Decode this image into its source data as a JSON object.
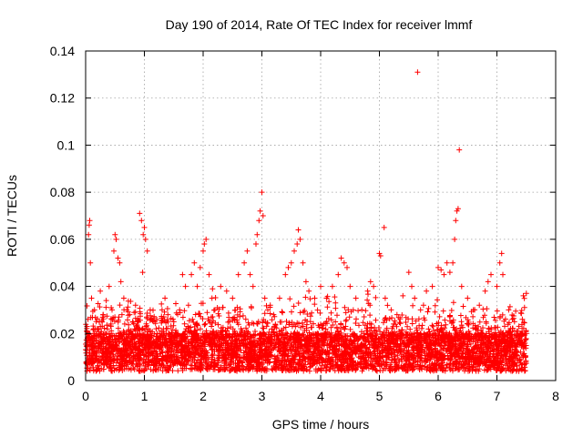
{
  "chart_data": {
    "type": "scatter",
    "title": "Day 190 of 2014, Rate Of TEC Index for receiver lmmf",
    "xlabel": "GPS time / hours",
    "ylabel": "ROTI / TECUs",
    "xlim": [
      0,
      8
    ],
    "ylim": [
      0,
      0.14
    ],
    "xticks": [
      0,
      1,
      2,
      3,
      4,
      5,
      6,
      7,
      8
    ],
    "yticks": [
      0,
      0.02,
      0.04,
      0.06,
      0.08,
      0.1,
      0.12,
      0.14
    ],
    "xtick_labels": [
      "0",
      "1",
      "2",
      "3",
      "4",
      "5",
      "6",
      "7",
      "8"
    ],
    "ytick_labels": [
      "0",
      "0.02",
      "0.04",
      "0.06",
      "0.08",
      "0.1",
      "0.12",
      "0.14"
    ],
    "grid": true,
    "marker": "+",
    "color": "#ff0000",
    "series": [
      {
        "name": "ROTI",
        "points": [
          [
            0.02,
            0.008
          ],
          [
            0.03,
            0.018
          ],
          [
            0.04,
            0.026
          ],
          [
            0.05,
            0.062
          ],
          [
            0.06,
            0.066
          ],
          [
            0.07,
            0.068
          ],
          [
            0.08,
            0.05
          ],
          [
            0.1,
            0.035
          ],
          [
            0.12,
            0.012
          ],
          [
            0.15,
            0.03
          ],
          [
            0.2,
            0.022
          ],
          [
            0.25,
            0.038
          ],
          [
            0.3,
            0.028
          ],
          [
            0.35,
            0.034
          ],
          [
            0.4,
            0.04
          ],
          [
            0.45,
            0.03
          ],
          [
            0.48,
            0.055
          ],
          [
            0.5,
            0.062
          ],
          [
            0.52,
            0.06
          ],
          [
            0.55,
            0.052
          ],
          [
            0.58,
            0.05
          ],
          [
            0.6,
            0.042
          ],
          [
            0.65,
            0.035
          ],
          [
            0.7,
            0.03
          ],
          [
            0.75,
            0.028
          ],
          [
            0.8,
            0.025
          ],
          [
            0.85,
            0.032
          ],
          [
            0.9,
            0.022
          ],
          [
            0.92,
            0.071
          ],
          [
            0.95,
            0.068
          ],
          [
            0.98,
            0.062
          ],
          [
            1.0,
            0.065
          ],
          [
            1.02,
            0.06
          ],
          [
            1.05,
            0.055
          ],
          [
            0.97,
            0.046
          ],
          [
            1.1,
            0.03
          ],
          [
            1.2,
            0.022
          ],
          [
            1.3,
            0.03
          ],
          [
            1.35,
            0.035
          ],
          [
            1.4,
            0.028
          ],
          [
            1.5,
            0.025
          ],
          [
            1.55,
            0.02
          ],
          [
            1.6,
            0.03
          ],
          [
            1.65,
            0.045
          ],
          [
            1.7,
            0.04
          ],
          [
            1.75,
            0.032
          ],
          [
            1.8,
            0.045
          ],
          [
            1.85,
            0.05
          ],
          [
            1.9,
            0.04
          ],
          [
            1.95,
            0.048
          ],
          [
            2.0,
            0.055
          ],
          [
            2.02,
            0.058
          ],
          [
            2.05,
            0.06
          ],
          [
            2.1,
            0.045
          ],
          [
            2.15,
            0.035
          ],
          [
            2.2,
            0.03
          ],
          [
            2.3,
            0.04
          ],
          [
            2.4,
            0.038
          ],
          [
            2.5,
            0.035
          ],
          [
            2.6,
            0.045
          ],
          [
            2.7,
            0.05
          ],
          [
            2.75,
            0.055
          ],
          [
            2.8,
            0.045
          ],
          [
            2.85,
            0.04
          ],
          [
            2.9,
            0.058
          ],
          [
            2.92,
            0.062
          ],
          [
            2.95,
            0.068
          ],
          [
            2.97,
            0.072
          ],
          [
            3.0,
            0.08
          ],
          [
            3.02,
            0.07
          ],
          [
            3.05,
            0.035
          ],
          [
            3.1,
            0.03
          ],
          [
            3.2,
            0.028
          ],
          [
            3.3,
            0.035
          ],
          [
            3.4,
            0.045
          ],
          [
            3.45,
            0.048
          ],
          [
            3.5,
            0.05
          ],
          [
            3.55,
            0.055
          ],
          [
            3.6,
            0.058
          ],
          [
            3.62,
            0.064
          ],
          [
            3.65,
            0.06
          ],
          [
            3.7,
            0.05
          ],
          [
            3.75,
            0.042
          ],
          [
            3.8,
            0.038
          ],
          [
            3.9,
            0.035
          ],
          [
            4.0,
            0.04
          ],
          [
            4.1,
            0.035
          ],
          [
            4.2,
            0.04
          ],
          [
            4.3,
            0.045
          ],
          [
            4.35,
            0.052
          ],
          [
            4.4,
            0.05
          ],
          [
            4.45,
            0.048
          ],
          [
            4.5,
            0.04
          ],
          [
            4.6,
            0.035
          ],
          [
            4.7,
            0.03
          ],
          [
            4.8,
            0.038
          ],
          [
            4.85,
            0.042
          ],
          [
            4.9,
            0.04
          ],
          [
            5.0,
            0.054
          ],
          [
            5.02,
            0.053
          ],
          [
            5.08,
            0.065
          ],
          [
            5.1,
            0.035
          ],
          [
            5.2,
            0.03
          ],
          [
            5.3,
            0.028
          ],
          [
            5.4,
            0.036
          ],
          [
            5.5,
            0.046
          ],
          [
            5.55,
            0.04
          ],
          [
            5.6,
            0.035
          ],
          [
            5.65,
            0.131
          ],
          [
            5.7,
            0.03
          ],
          [
            5.75,
            0.032
          ],
          [
            5.8,
            0.038
          ],
          [
            5.9,
            0.04
          ],
          [
            6.0,
            0.048
          ],
          [
            6.05,
            0.047
          ],
          [
            6.1,
            0.045
          ],
          [
            6.15,
            0.05
          ],
          [
            6.2,
            0.046
          ],
          [
            6.25,
            0.05
          ],
          [
            6.28,
            0.06
          ],
          [
            6.3,
            0.068
          ],
          [
            6.32,
            0.072
          ],
          [
            6.34,
            0.073
          ],
          [
            6.36,
            0.098
          ],
          [
            6.4,
            0.04
          ],
          [
            6.5,
            0.035
          ],
          [
            6.6,
            0.03
          ],
          [
            6.7,
            0.032
          ],
          [
            6.8,
            0.038
          ],
          [
            6.85,
            0.042
          ],
          [
            6.9,
            0.045
          ],
          [
            7.0,
            0.04
          ],
          [
            7.05,
            0.05
          ],
          [
            7.08,
            0.054
          ],
          [
            7.1,
            0.045
          ],
          [
            7.2,
            0.03
          ],
          [
            7.3,
            0.025
          ],
          [
            7.4,
            0.02
          ],
          [
            7.45,
            0.036
          ],
          [
            7.5,
            0.037
          ]
        ]
      }
    ]
  }
}
